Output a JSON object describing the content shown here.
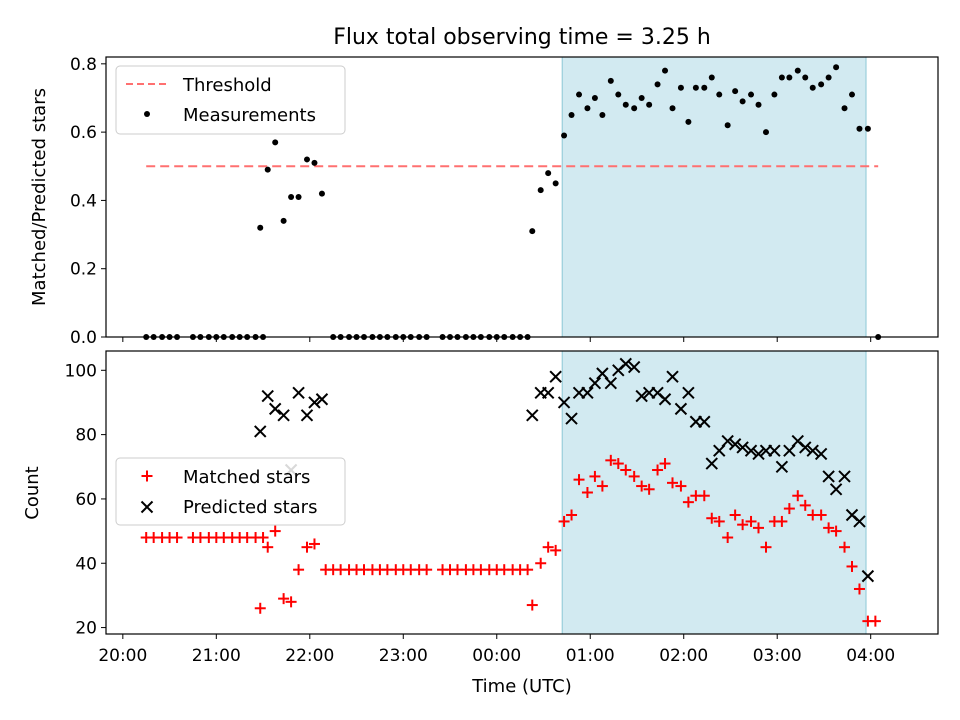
{
  "title": "Flux total observing time = 3.25 h",
  "colors": {
    "threshold": "#ff7070",
    "measurements": "#000000",
    "matched": "#ff0000",
    "predicted": "#000000",
    "shade": "#add8e6"
  },
  "chart_data": [
    {
      "type": "scatter",
      "panel": "top",
      "ylabel": "Matched/Predicted stars",
      "xlabel": "",
      "x_axis": "time (hours, 20.0 = 20:00 UTC, 24.0 = 00:00)",
      "xlim": [
        19.82,
        28.72
      ],
      "ylim": [
        0,
        0.82
      ],
      "yticks": [
        "0.0",
        "0.2",
        "0.4",
        "0.6",
        "0.8"
      ],
      "legend": {
        "placement": "top-left",
        "entries": [
          "Threshold",
          "Measurements"
        ]
      },
      "shaded_span": [
        24.7,
        27.95
      ],
      "threshold": {
        "name": "Threshold",
        "value": 0.5,
        "x_range": [
          20.25,
          28.08
        ]
      },
      "series": [
        {
          "name": "Measurements",
          "points": [
            [
              20.25,
              0
            ],
            [
              20.33,
              0
            ],
            [
              20.42,
              0
            ],
            [
              20.5,
              0
            ],
            [
              20.58,
              0
            ],
            [
              20.75,
              0
            ],
            [
              20.83,
              0
            ],
            [
              20.92,
              0
            ],
            [
              21.0,
              0
            ],
            [
              21.08,
              0
            ],
            [
              21.17,
              0
            ],
            [
              21.25,
              0
            ],
            [
              21.33,
              0
            ],
            [
              21.42,
              0
            ],
            [
              21.5,
              0
            ],
            [
              21.47,
              0.32
            ],
            [
              21.55,
              0.49
            ],
            [
              21.63,
              0.57
            ],
            [
              21.72,
              0.34
            ],
            [
              21.8,
              0.41
            ],
            [
              21.88,
              0.41
            ],
            [
              21.97,
              0.52
            ],
            [
              22.05,
              0.51
            ],
            [
              22.13,
              0.42
            ],
            [
              22.25,
              0
            ],
            [
              22.33,
              0
            ],
            [
              22.42,
              0
            ],
            [
              22.5,
              0
            ],
            [
              22.58,
              0
            ],
            [
              22.67,
              0
            ],
            [
              22.75,
              0
            ],
            [
              22.83,
              0
            ],
            [
              22.92,
              0
            ],
            [
              23.0,
              0
            ],
            [
              23.08,
              0
            ],
            [
              23.17,
              0
            ],
            [
              23.25,
              0
            ],
            [
              23.42,
              0
            ],
            [
              23.5,
              0
            ],
            [
              23.58,
              0
            ],
            [
              23.67,
              0
            ],
            [
              23.75,
              0
            ],
            [
              23.83,
              0
            ],
            [
              23.92,
              0
            ],
            [
              24.0,
              0
            ],
            [
              24.08,
              0
            ],
            [
              24.17,
              0
            ],
            [
              24.25,
              0
            ],
            [
              24.33,
              0
            ],
            [
              24.38,
              0.31
            ],
            [
              24.47,
              0.43
            ],
            [
              24.55,
              0.48
            ],
            [
              24.63,
              0.45
            ],
            [
              24.72,
              0.59
            ],
            [
              24.8,
              0.65
            ],
            [
              24.88,
              0.71
            ],
            [
              24.97,
              0.67
            ],
            [
              25.05,
              0.7
            ],
            [
              25.13,
              0.65
            ],
            [
              25.22,
              0.75
            ],
            [
              25.3,
              0.71
            ],
            [
              25.38,
              0.68
            ],
            [
              25.47,
              0.67
            ],
            [
              25.55,
              0.7
            ],
            [
              25.63,
              0.68
            ],
            [
              25.72,
              0.74
            ],
            [
              25.8,
              0.78
            ],
            [
              25.88,
              0.67
            ],
            [
              25.97,
              0.73
            ],
            [
              26.05,
              0.63
            ],
            [
              26.13,
              0.73
            ],
            [
              26.22,
              0.73
            ],
            [
              26.3,
              0.76
            ],
            [
              26.38,
              0.71
            ],
            [
              26.47,
              0.62
            ],
            [
              26.55,
              0.72
            ],
            [
              26.63,
              0.69
            ],
            [
              26.72,
              0.71
            ],
            [
              26.8,
              0.68
            ],
            [
              26.88,
              0.6
            ],
            [
              26.97,
              0.71
            ],
            [
              27.05,
              0.76
            ],
            [
              27.13,
              0.76
            ],
            [
              27.22,
              0.78
            ],
            [
              27.3,
              0.76
            ],
            [
              27.38,
              0.73
            ],
            [
              27.47,
              0.74
            ],
            [
              27.55,
              0.76
            ],
            [
              27.63,
              0.79
            ],
            [
              27.72,
              0.67
            ],
            [
              27.8,
              0.71
            ],
            [
              27.88,
              0.61
            ],
            [
              27.97,
              0.61
            ],
            [
              28.08,
              0
            ]
          ]
        }
      ]
    },
    {
      "type": "scatter",
      "panel": "bottom",
      "ylabel": "Count",
      "xlabel": "Time (UTC)",
      "xlim": [
        19.82,
        28.72
      ],
      "ylim": [
        18,
        106
      ],
      "yticks": [
        "20",
        "40",
        "60",
        "80",
        "100"
      ],
      "xticks": [
        "20:00",
        "21:00",
        "22:00",
        "23:00",
        "00:00",
        "01:00",
        "02:00",
        "03:00",
        "04:00"
      ],
      "legend": {
        "placement": "center-left",
        "entries": [
          "Matched stars",
          "Predicted stars"
        ]
      },
      "shaded_span": [
        24.7,
        27.95
      ],
      "series": [
        {
          "name": "Matched stars",
          "marker": "+",
          "points": [
            [
              20.25,
              48
            ],
            [
              20.33,
              48
            ],
            [
              20.42,
              48
            ],
            [
              20.5,
              48
            ],
            [
              20.58,
              48
            ],
            [
              20.75,
              48
            ],
            [
              20.83,
              48
            ],
            [
              20.92,
              48
            ],
            [
              21.0,
              48
            ],
            [
              21.08,
              48
            ],
            [
              21.17,
              48
            ],
            [
              21.25,
              48
            ],
            [
              21.33,
              48
            ],
            [
              21.42,
              48
            ],
            [
              21.5,
              48
            ],
            [
              21.47,
              26
            ],
            [
              21.55,
              45
            ],
            [
              21.63,
              50
            ],
            [
              21.72,
              29
            ],
            [
              21.8,
              28
            ],
            [
              21.88,
              38
            ],
            [
              21.97,
              45
            ],
            [
              22.05,
              46
            ],
            [
              22.17,
              38
            ],
            [
              22.25,
              38
            ],
            [
              22.33,
              38
            ],
            [
              22.42,
              38
            ],
            [
              22.5,
              38
            ],
            [
              22.58,
              38
            ],
            [
              22.67,
              38
            ],
            [
              22.75,
              38
            ],
            [
              22.83,
              38
            ],
            [
              22.92,
              38
            ],
            [
              23.0,
              38
            ],
            [
              23.08,
              38
            ],
            [
              23.17,
              38
            ],
            [
              23.25,
              38
            ],
            [
              23.42,
              38
            ],
            [
              23.5,
              38
            ],
            [
              23.58,
              38
            ],
            [
              23.67,
              38
            ],
            [
              23.75,
              38
            ],
            [
              23.83,
              38
            ],
            [
              23.92,
              38
            ],
            [
              24.0,
              38
            ],
            [
              24.08,
              38
            ],
            [
              24.17,
              38
            ],
            [
              24.25,
              38
            ],
            [
              24.33,
              38
            ],
            [
              24.38,
              27
            ],
            [
              24.47,
              40
            ],
            [
              24.55,
              45
            ],
            [
              24.63,
              44
            ],
            [
              24.72,
              53
            ],
            [
              24.8,
              55
            ],
            [
              24.88,
              66
            ],
            [
              24.97,
              62
            ],
            [
              25.05,
              67
            ],
            [
              25.13,
              64
            ],
            [
              25.22,
              72
            ],
            [
              25.3,
              71
            ],
            [
              25.38,
              69
            ],
            [
              25.47,
              67
            ],
            [
              25.55,
              64
            ],
            [
              25.63,
              63
            ],
            [
              25.72,
              69
            ],
            [
              25.8,
              71
            ],
            [
              25.88,
              65
            ],
            [
              25.97,
              64
            ],
            [
              26.05,
              59
            ],
            [
              26.13,
              61
            ],
            [
              26.22,
              61
            ],
            [
              26.3,
              54
            ],
            [
              26.38,
              53
            ],
            [
              26.47,
              48
            ],
            [
              26.55,
              55
            ],
            [
              26.63,
              52
            ],
            [
              26.72,
              53
            ],
            [
              26.8,
              51
            ],
            [
              26.88,
              45
            ],
            [
              26.97,
              53
            ],
            [
              27.05,
              53
            ],
            [
              27.13,
              57
            ],
            [
              27.22,
              61
            ],
            [
              27.3,
              58
            ],
            [
              27.38,
              55
            ],
            [
              27.47,
              55
            ],
            [
              27.55,
              51
            ],
            [
              27.63,
              50
            ],
            [
              27.72,
              45
            ],
            [
              27.8,
              39
            ],
            [
              27.88,
              32
            ],
            [
              27.97,
              22
            ],
            [
              28.05,
              22
            ]
          ]
        },
        {
          "name": "Predicted stars",
          "marker": "x",
          "points": [
            [
              21.47,
              81
            ],
            [
              21.55,
              92
            ],
            [
              21.63,
              88
            ],
            [
              21.72,
              86
            ],
            [
              21.8,
              69
            ],
            [
              21.88,
              93
            ],
            [
              21.97,
              86
            ],
            [
              22.05,
              90
            ],
            [
              22.13,
              91
            ],
            [
              24.38,
              86
            ],
            [
              24.47,
              93
            ],
            [
              24.55,
              93
            ],
            [
              24.63,
              98
            ],
            [
              24.72,
              90
            ],
            [
              24.8,
              85
            ],
            [
              24.88,
              93
            ],
            [
              24.97,
              93
            ],
            [
              25.05,
              96
            ],
            [
              25.13,
              99
            ],
            [
              25.22,
              96
            ],
            [
              25.3,
              100
            ],
            [
              25.38,
              102
            ],
            [
              25.47,
              101
            ],
            [
              25.55,
              92
            ],
            [
              25.63,
              93
            ],
            [
              25.72,
              93
            ],
            [
              25.8,
              91
            ],
            [
              25.88,
              98
            ],
            [
              25.97,
              88
            ],
            [
              26.05,
              93
            ],
            [
              26.13,
              84
            ],
            [
              26.22,
              84
            ],
            [
              26.3,
              71
            ],
            [
              26.38,
              75
            ],
            [
              26.47,
              78
            ],
            [
              26.55,
              77
            ],
            [
              26.63,
              76
            ],
            [
              26.72,
              75
            ],
            [
              26.8,
              74
            ],
            [
              26.88,
              75
            ],
            [
              26.97,
              75
            ],
            [
              27.05,
              70
            ],
            [
              27.13,
              75
            ],
            [
              27.22,
              78
            ],
            [
              27.3,
              76
            ],
            [
              27.38,
              75
            ],
            [
              27.47,
              74
            ],
            [
              27.55,
              67
            ],
            [
              27.63,
              63
            ],
            [
              27.72,
              67
            ],
            [
              27.8,
              55
            ],
            [
              27.88,
              53
            ],
            [
              27.97,
              36
            ]
          ]
        }
      ]
    }
  ]
}
